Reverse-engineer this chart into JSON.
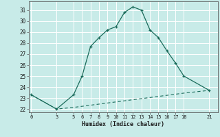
{
  "xlabel": "Humidex (Indice chaleur)",
  "bg_color": "#c8ebe8",
  "grid_color": "#ffffff",
  "line_color": "#1a6b5a",
  "x_ticks": [
    0,
    3,
    5,
    6,
    7,
    8,
    9,
    10,
    11,
    12,
    13,
    14,
    15,
    16,
    17,
    18,
    21
  ],
  "upper_x": [
    0,
    3,
    5,
    6,
    7,
    8,
    9,
    10,
    11,
    12,
    13,
    14,
    15,
    16,
    17,
    18,
    21
  ],
  "upper_y": [
    23.3,
    22.0,
    23.3,
    25.0,
    27.7,
    28.5,
    29.2,
    29.5,
    30.8,
    31.3,
    31.0,
    29.2,
    28.5,
    27.3,
    26.2,
    25.0,
    23.7
  ],
  "lower_x": [
    0,
    3,
    5,
    6,
    7,
    8,
    9,
    10,
    11,
    12,
    13,
    14,
    15,
    16,
    17,
    18,
    21
  ],
  "lower_y": [
    23.3,
    22.0,
    22.15,
    22.25,
    22.35,
    22.45,
    22.55,
    22.65,
    22.75,
    22.85,
    22.95,
    23.05,
    23.15,
    23.25,
    23.35,
    23.45,
    23.7
  ],
  "ylim": [
    21.7,
    31.8
  ],
  "yticks": [
    22,
    23,
    24,
    25,
    26,
    27,
    28,
    29,
    30,
    31
  ],
  "xlim": [
    -0.3,
    22.0
  ]
}
